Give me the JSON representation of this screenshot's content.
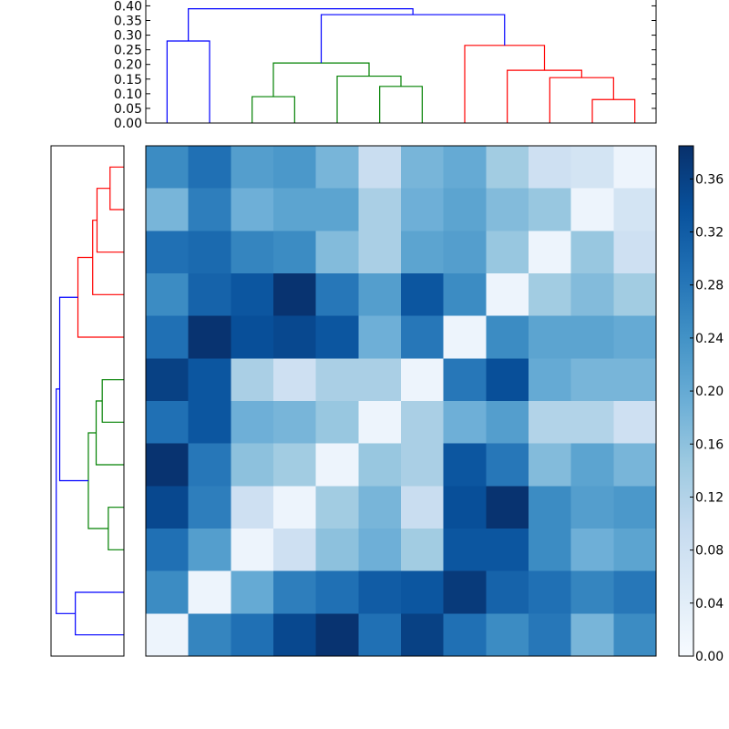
{
  "chart_data": [
    {
      "type": "dendrogram",
      "orientation": "top",
      "ylim": [
        0,
        0.42
      ],
      "yticks": [
        "0.00",
        "0.05",
        "0.10",
        "0.15",
        "0.20",
        "0.25",
        "0.30",
        "0.35",
        "0.40"
      ],
      "leaf_count": 12,
      "colors": {
        "blue": "#0000ff",
        "green": "#008000",
        "red": "#ff0000"
      },
      "links": [
        {
          "color": "red",
          "left": [
            10,
            0.0
          ],
          "right": [
            11,
            0.0
          ],
          "height": 0.08
        },
        {
          "color": "red",
          "left": [
            9,
            0.0
          ],
          "right": [
            10.5,
            0.08
          ],
          "height": 0.155
        },
        {
          "color": "red",
          "left": [
            8,
            0.0
          ],
          "right": [
            9.75,
            0.155
          ],
          "height": 0.18
        },
        {
          "color": "red",
          "left": [
            7,
            0.0
          ],
          "right": [
            8.875,
            0.18
          ],
          "height": 0.265
        },
        {
          "color": "green",
          "left": [
            5,
            0.0
          ],
          "right": [
            6,
            0.0
          ],
          "height": 0.125
        },
        {
          "color": "green",
          "left": [
            4,
            0.0
          ],
          "right": [
            5.5,
            0.125
          ],
          "height": 0.16
        },
        {
          "color": "green",
          "left": [
            2,
            0.0
          ],
          "right": [
            3,
            0.0
          ],
          "height": 0.09
        },
        {
          "color": "green",
          "left": [
            2.5,
            0.09
          ],
          "right": [
            4.75,
            0.16
          ],
          "height": 0.205
        },
        {
          "color": "blue",
          "left": [
            3.625,
            0.205
          ],
          "right": [
            7.9375,
            0.265
          ],
          "height": 0.37
        },
        {
          "color": "blue",
          "left": [
            0,
            0.0
          ],
          "right": [
            1,
            0.0
          ],
          "height": 0.28
        },
        {
          "color": "blue",
          "left": [
            0.5,
            0.28
          ],
          "right": [
            5.78125,
            0.37
          ],
          "height": 0.39
        }
      ]
    },
    {
      "type": "dendrogram",
      "orientation": "left",
      "leaf_count": 12,
      "xlim": [
        0,
        0.42
      ],
      "colors": {
        "blue": "#0000ff",
        "green": "#008000",
        "red": "#ff0000"
      },
      "links": [
        {
          "color": "red",
          "a": [
            0,
            0.0
          ],
          "b": [
            1,
            0.0
          ],
          "height": 0.08
        },
        {
          "color": "red",
          "a": [
            0.5,
            0.08
          ],
          "b": [
            2,
            0.0
          ],
          "height": 0.155
        },
        {
          "color": "red",
          "a": [
            1.25,
            0.155
          ],
          "b": [
            3,
            0.0
          ],
          "height": 0.18
        },
        {
          "color": "red",
          "a": [
            2.125,
            0.18
          ],
          "b": [
            4,
            0.0
          ],
          "height": 0.265
        },
        {
          "color": "green",
          "a": [
            5,
            0.0
          ],
          "b": [
            6,
            0.0
          ],
          "height": 0.125
        },
        {
          "color": "green",
          "a": [
            5.5,
            0.125
          ],
          "b": [
            7,
            0.0
          ],
          "height": 0.16
        },
        {
          "color": "green",
          "a": [
            8,
            0.0
          ],
          "b": [
            9,
            0.0
          ],
          "height": 0.09
        },
        {
          "color": "green",
          "a": [
            6.25,
            0.16
          ],
          "b": [
            8.5,
            0.09
          ],
          "height": 0.205
        },
        {
          "color": "blue",
          "a": [
            3.0625,
            0.265
          ],
          "b": [
            7.375,
            0.205
          ],
          "height": 0.37
        },
        {
          "color": "blue",
          "a": [
            10,
            0.0
          ],
          "b": [
            11,
            0.0
          ],
          "height": 0.28
        },
        {
          "color": "blue",
          "a": [
            5.21875,
            0.37
          ],
          "b": [
            10.5,
            0.28
          ],
          "height": 0.39
        }
      ]
    },
    {
      "type": "heatmap",
      "rows": 12,
      "cols": 12,
      "colormap": "Blues",
      "vmin": 0.0,
      "vmax": 0.385,
      "values": [
        [
          0.25,
          0.29,
          0.22,
          0.23,
          0.18,
          0.09,
          0.18,
          0.2,
          0.14,
          0.08,
          0.07,
          0.02
        ],
        [
          0.18,
          0.27,
          0.19,
          0.21,
          0.21,
          0.13,
          0.19,
          0.21,
          0.17,
          0.15,
          0.02,
          0.07
        ],
        [
          0.29,
          0.3,
          0.26,
          0.25,
          0.17,
          0.13,
          0.21,
          0.22,
          0.15,
          0.02,
          0.15,
          0.08
        ],
        [
          0.25,
          0.31,
          0.33,
          0.38,
          0.28,
          0.22,
          0.33,
          0.25,
          0.02,
          0.14,
          0.17,
          0.14
        ],
        [
          0.29,
          0.38,
          0.34,
          0.35,
          0.33,
          0.19,
          0.28,
          0.02,
          0.25,
          0.21,
          0.21,
          0.2
        ],
        [
          0.36,
          0.33,
          0.13,
          0.08,
          0.13,
          0.13,
          0.02,
          0.28,
          0.34,
          0.2,
          0.18,
          0.18
        ],
        [
          0.29,
          0.33,
          0.19,
          0.18,
          0.15,
          0.02,
          0.13,
          0.19,
          0.22,
          0.12,
          0.12,
          0.08
        ],
        [
          0.38,
          0.28,
          0.16,
          0.14,
          0.02,
          0.15,
          0.13,
          0.33,
          0.28,
          0.17,
          0.21,
          0.18
        ],
        [
          0.35,
          0.27,
          0.08,
          0.02,
          0.14,
          0.18,
          0.09,
          0.34,
          0.38,
          0.25,
          0.22,
          0.23
        ],
        [
          0.29,
          0.22,
          0.02,
          0.08,
          0.16,
          0.19,
          0.14,
          0.33,
          0.33,
          0.25,
          0.19,
          0.21
        ],
        [
          0.25,
          0.02,
          0.2,
          0.27,
          0.29,
          0.32,
          0.33,
          0.37,
          0.31,
          0.29,
          0.26,
          0.28
        ],
        [
          0.02,
          0.26,
          0.29,
          0.35,
          0.38,
          0.29,
          0.36,
          0.29,
          0.25,
          0.28,
          0.18,
          0.25
        ]
      ]
    },
    {
      "type": "colorbar",
      "colormap": "Blues",
      "vmin": 0.0,
      "vmax": 0.385,
      "ticks": [
        0.0,
        0.04,
        0.08,
        0.12,
        0.16,
        0.2,
        0.24,
        0.28,
        0.32,
        0.36
      ],
      "tick_labels": [
        "0.00",
        "0.04",
        "0.08",
        "0.12",
        "0.16",
        "0.20",
        "0.24",
        "0.28",
        "0.32",
        "0.36"
      ]
    }
  ]
}
